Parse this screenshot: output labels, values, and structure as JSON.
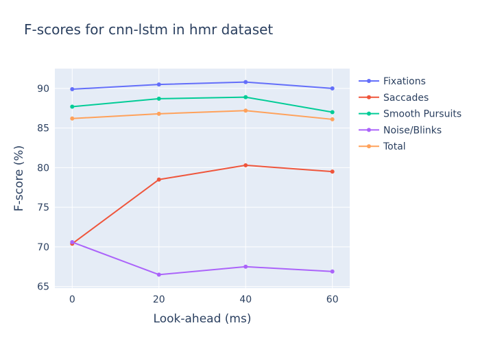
{
  "chart_data": {
    "type": "line",
    "title": "F-scores for cnn-lstm in hmr dataset",
    "xlabel": "Look-ahead (ms)",
    "ylabel": "F-score (%)",
    "x": [
      0,
      20,
      40,
      60
    ],
    "xlim": [
      -4,
      64
    ],
    "ylim": [
      64.8,
      92.5
    ],
    "xticks": [
      0,
      20,
      40,
      60
    ],
    "yticks": [
      65,
      70,
      75,
      80,
      85,
      90
    ],
    "grid": true,
    "legend_position": "right",
    "series": [
      {
        "name": "Fixations",
        "color": "#636efa",
        "values": [
          89.9,
          90.5,
          90.8,
          90.0
        ]
      },
      {
        "name": "Saccades",
        "color": "#ef553b",
        "values": [
          70.4,
          78.5,
          80.3,
          79.5
        ]
      },
      {
        "name": "Smooth Pursuits",
        "color": "#00cc96",
        "values": [
          87.7,
          88.7,
          88.9,
          87.0
        ]
      },
      {
        "name": "Noise/Blinks",
        "color": "#ab63fa",
        "values": [
          70.6,
          66.5,
          67.5,
          66.9
        ]
      },
      {
        "name": "Total",
        "color": "#ffa15a",
        "values": [
          86.2,
          86.8,
          87.2,
          86.1
        ]
      }
    ]
  }
}
